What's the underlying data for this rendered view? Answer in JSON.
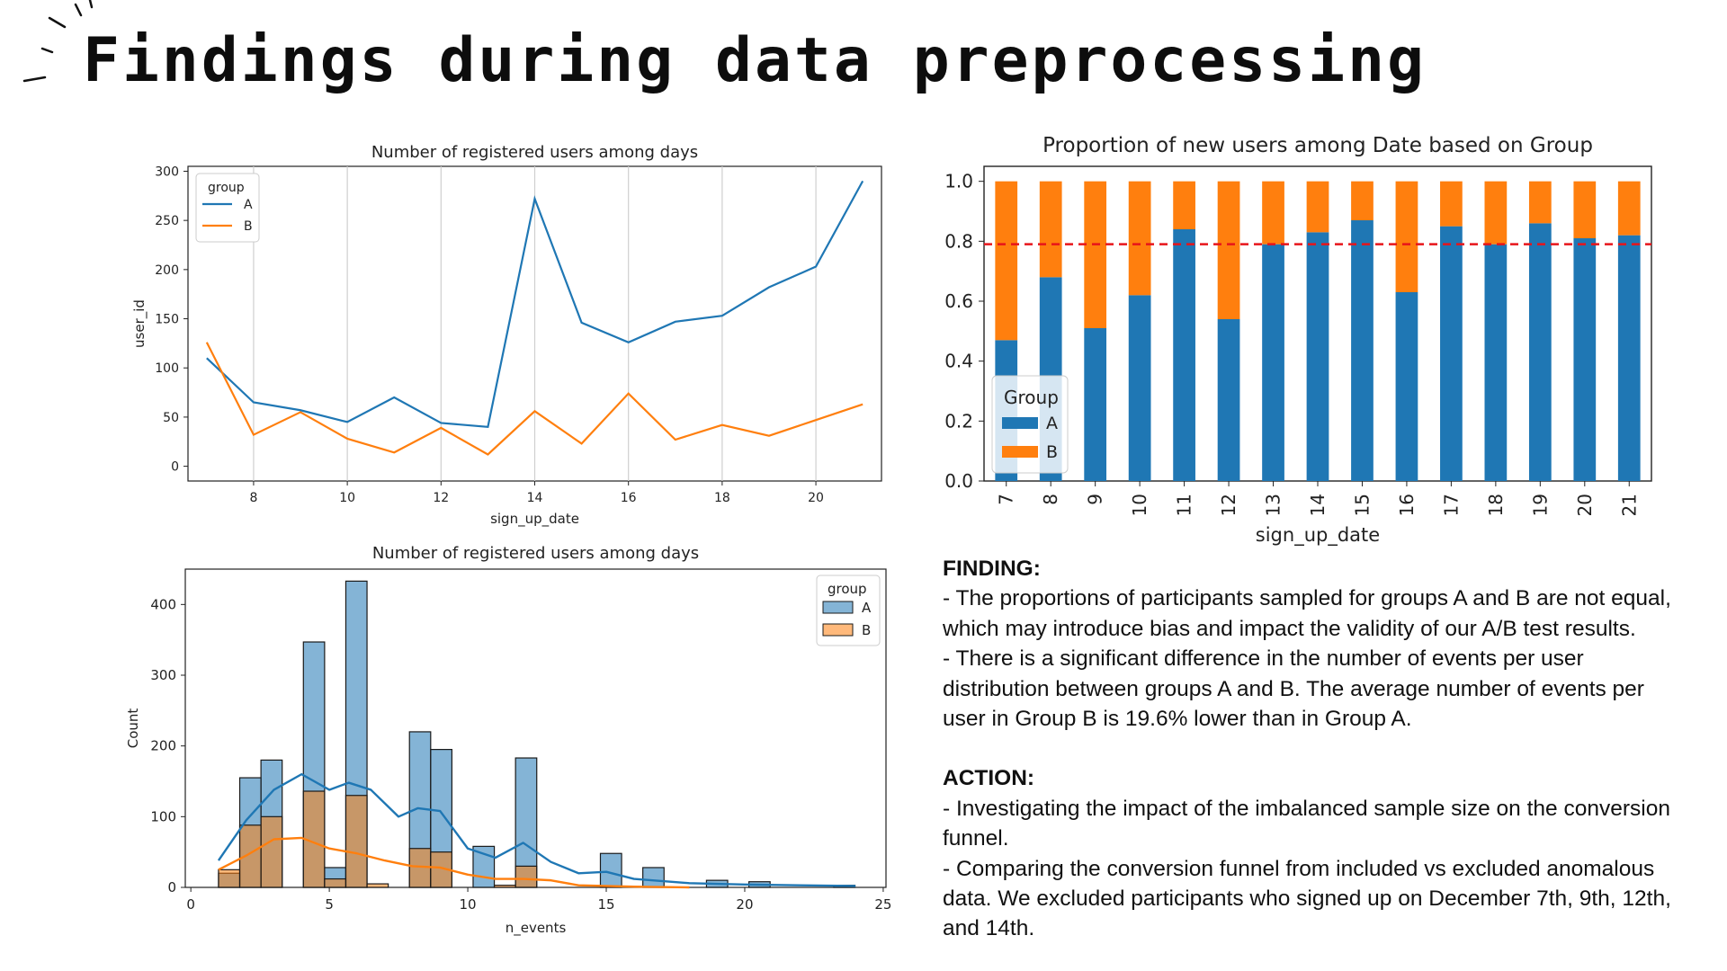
{
  "slide": {
    "title": "Findings during data preprocessing"
  },
  "line_chart": {
    "title": "Number of registered users among days",
    "xlabel": "sign_up_date",
    "ylabel": "user_id",
    "legend_title": "group",
    "colors": {
      "A": "#1f77b4",
      "B": "#ff7f0e"
    }
  },
  "stacked_chart": {
    "title": "Proportion of new users among Date based on Group",
    "xlabel": "sign_up_date",
    "legend_title": "Group",
    "reference_line": 0.79
  },
  "hist_chart": {
    "title": "Number of registered users among days",
    "xlabel": "n_events",
    "ylabel": "Count",
    "legend_title": "group"
  },
  "findings": {
    "finding_heading": "FINDING:",
    "finding_lines": [
      "- The proportions of participants sampled for groups A and B are not equal,",
      "which may introduce bias and impact the validity of our A/B test results.",
      "- There is a significant difference in the number of events per user",
      "distribution between groups A and B. The average number of events per",
      "user in Group B is 19.6% lower than in Group A."
    ],
    "action_heading": "ACTION:",
    "action_lines": [
      "- Investigating the impact of the imbalanced sample size on the conversion",
      "funnel.",
      "- Comparing the conversion funnel from included vs excluded anomalous",
      "data. We excluded participants who signed up on December 7th, 9th, 12th,",
      "and 14th."
    ]
  },
  "chart_data": [
    {
      "type": "line",
      "title": "Number of registered users among days",
      "xlabel": "sign_up_date",
      "ylabel": "user_id",
      "x": [
        7,
        8,
        9,
        10,
        11,
        12,
        13,
        14,
        15,
        16,
        17,
        18,
        19,
        20,
        21
      ],
      "series": [
        {
          "name": "A",
          "values": [
            110,
            65,
            57,
            45,
            70,
            44,
            40,
            272,
            146,
            126,
            147,
            153,
            182,
            203,
            290
          ]
        },
        {
          "name": "B",
          "values": [
            126,
            32,
            55,
            28,
            14,
            39,
            12,
            56,
            23,
            74,
            27,
            42,
            31,
            47,
            63
          ]
        }
      ],
      "xticks": [
        8,
        10,
        12,
        14,
        16,
        18,
        20
      ],
      "yticks": [
        0,
        50,
        100,
        150,
        200,
        250,
        300
      ],
      "xlim": [
        6.6,
        21.4
      ],
      "ylim": [
        -15,
        305
      ],
      "grid": "vertical",
      "legend": "top-left"
    },
    {
      "type": "bar",
      "stacked": true,
      "title": "Proportion of new users among Date based on Group",
      "xlabel": "sign_up_date",
      "categories": [
        "7",
        "8",
        "9",
        "10",
        "11",
        "12",
        "13",
        "14",
        "15",
        "16",
        "17",
        "18",
        "19",
        "20",
        "21"
      ],
      "series": [
        {
          "name": "A",
          "values": [
            0.47,
            0.68,
            0.51,
            0.62,
            0.84,
            0.54,
            0.79,
            0.83,
            0.87,
            0.63,
            0.85,
            0.79,
            0.86,
            0.81,
            0.82
          ]
        },
        {
          "name": "B",
          "values": [
            0.53,
            0.32,
            0.49,
            0.38,
            0.16,
            0.46,
            0.21,
            0.17,
            0.13,
            0.37,
            0.15,
            0.21,
            0.14,
            0.19,
            0.18
          ]
        }
      ],
      "yticks": [
        0.0,
        0.2,
        0.4,
        0.6,
        0.8,
        1.0
      ],
      "ylim": [
        0,
        1.05
      ],
      "reference_line": 0.79,
      "legend": "lower-left"
    },
    {
      "type": "histogram",
      "title": "Number of registered users among days",
      "xlabel": "n_events",
      "ylabel": "Count",
      "bin_width": 0.766,
      "bin_starts": [
        1.0,
        1.766,
        2.532,
        3.298,
        4.064,
        4.83,
        5.596,
        6.362,
        7.128,
        7.894,
        8.66,
        9.426,
        10.192,
        10.958,
        11.724,
        12.49,
        13.256,
        14.022,
        14.788,
        15.554,
        16.32,
        17.086,
        17.852,
        18.618,
        19.384,
        20.15,
        20.916,
        21.682,
        22.448,
        23.214
      ],
      "series": [
        {
          "name": "A",
          "counts": [
            20,
            155,
            180,
            0,
            347,
            28,
            433,
            0,
            0,
            220,
            195,
            0,
            58,
            0,
            183,
            0,
            0,
            0,
            48,
            0,
            28,
            0,
            0,
            10,
            0,
            8,
            0,
            0,
            0,
            3
          ],
          "kde": [
            [
              1,
              38
            ],
            [
              2,
              95
            ],
            [
              3,
              138
            ],
            [
              4,
              160
            ],
            [
              5,
              138
            ],
            [
              5.7,
              148
            ],
            [
              6.5,
              138
            ],
            [
              7.5,
              100
            ],
            [
              8.2,
              112
            ],
            [
              9,
              108
            ],
            [
              10,
              55
            ],
            [
              11,
              42
            ],
            [
              12,
              63
            ],
            [
              13,
              36
            ],
            [
              14,
              20
            ],
            [
              15,
              22
            ],
            [
              16,
              12
            ],
            [
              18,
              6
            ],
            [
              20,
              4
            ],
            [
              22,
              3
            ],
            [
              24,
              2
            ]
          ]
        },
        {
          "name": "B",
          "counts": [
            25,
            88,
            100,
            0,
            136,
            12,
            130,
            5,
            0,
            55,
            50,
            0,
            0,
            3,
            30,
            0,
            0,
            0,
            0,
            0,
            0,
            0,
            0,
            0,
            0,
            0,
            0,
            0,
            0,
            0
          ],
          "kde": [
            [
              1,
              25
            ],
            [
              2,
              45
            ],
            [
              3,
              68
            ],
            [
              4,
              70
            ],
            [
              5,
              55
            ],
            [
              6,
              48
            ],
            [
              7,
              38
            ],
            [
              8,
              30
            ],
            [
              9,
              28
            ],
            [
              10,
              18
            ],
            [
              11,
              12
            ],
            [
              12,
              12
            ],
            [
              13,
              10
            ],
            [
              14,
              3
            ],
            [
              15,
              2
            ],
            [
              16,
              1
            ],
            [
              18,
              0
            ]
          ]
        }
      ],
      "xticks": [
        0,
        5,
        10,
        15,
        20,
        25
      ],
      "yticks": [
        0,
        100,
        200,
        300,
        400
      ],
      "xlim": [
        -0.2,
        25.1
      ],
      "ylim": [
        0,
        450
      ],
      "legend": "top-right"
    }
  ]
}
